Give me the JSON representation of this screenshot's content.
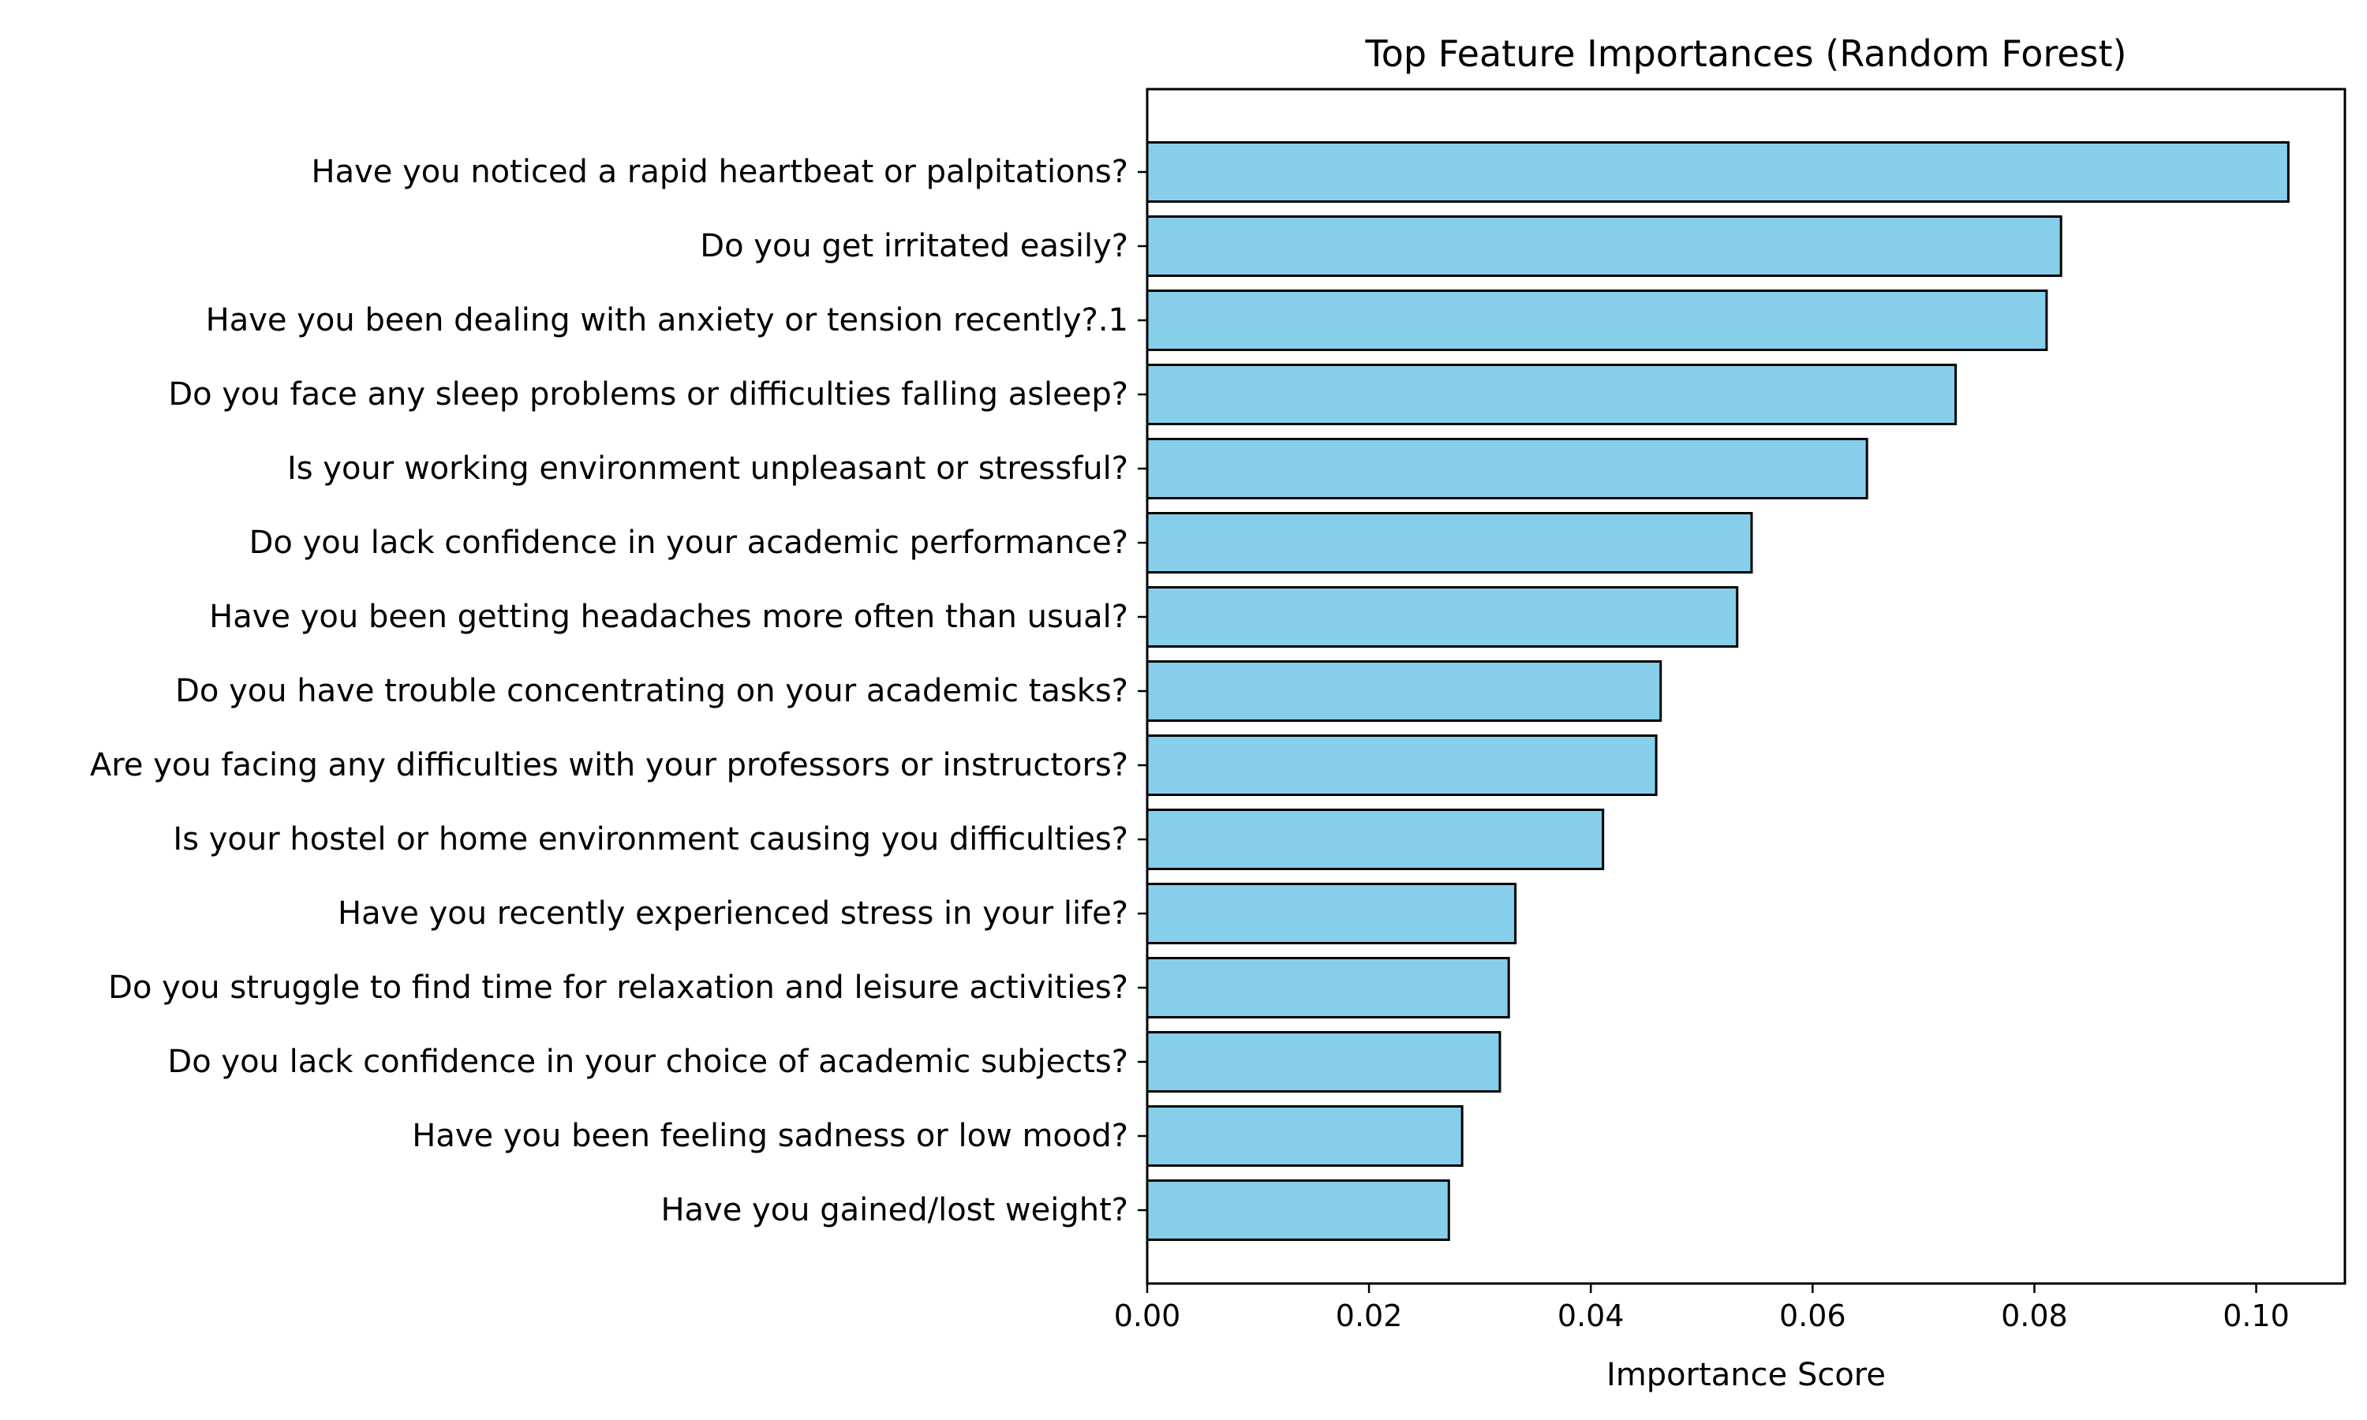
{
  "chart_data": {
    "type": "bar",
    "orientation": "horizontal",
    "title": "Top Feature Importances (Random Forest)",
    "xlabel": "Importance Score",
    "ylabel": "",
    "xlim": [
      0,
      0.108
    ],
    "xticks": [
      "0.00",
      "0.02",
      "0.04",
      "0.06",
      "0.08",
      "0.10"
    ],
    "grid": false,
    "bar_color": "#87CEEB",
    "edge_color": "#000000",
    "categories": [
      "Have you noticed a rapid heartbeat or palpitations?",
      "Do you get irritated easily?",
      "Have you been dealing with anxiety or tension recently?.1",
      "Do you face any sleep problems or difficulties falling asleep?",
      "Is your working environment unpleasant or stressful?",
      "Do you lack confidence in your academic performance?",
      "Have you been getting headaches more often than usual?",
      "Do you have trouble concentrating on your academic tasks?",
      "Are you facing any difficulties with your professors or instructors?",
      "Is your hostel or home environment causing you difficulties?",
      "Have you recently experienced stress in your life?",
      "Do you struggle to find time for relaxation and leisure activities?",
      "Do you lack confidence in your choice of academic subjects?",
      "Have you been feeling sadness or low mood?",
      "Have you gained/lost weight?"
    ],
    "values": [
      0.1029,
      0.0824,
      0.0811,
      0.0729,
      0.0649,
      0.0545,
      0.0532,
      0.0463,
      0.0459,
      0.0411,
      0.0332,
      0.0326,
      0.0318,
      0.0284,
      0.0272
    ]
  }
}
